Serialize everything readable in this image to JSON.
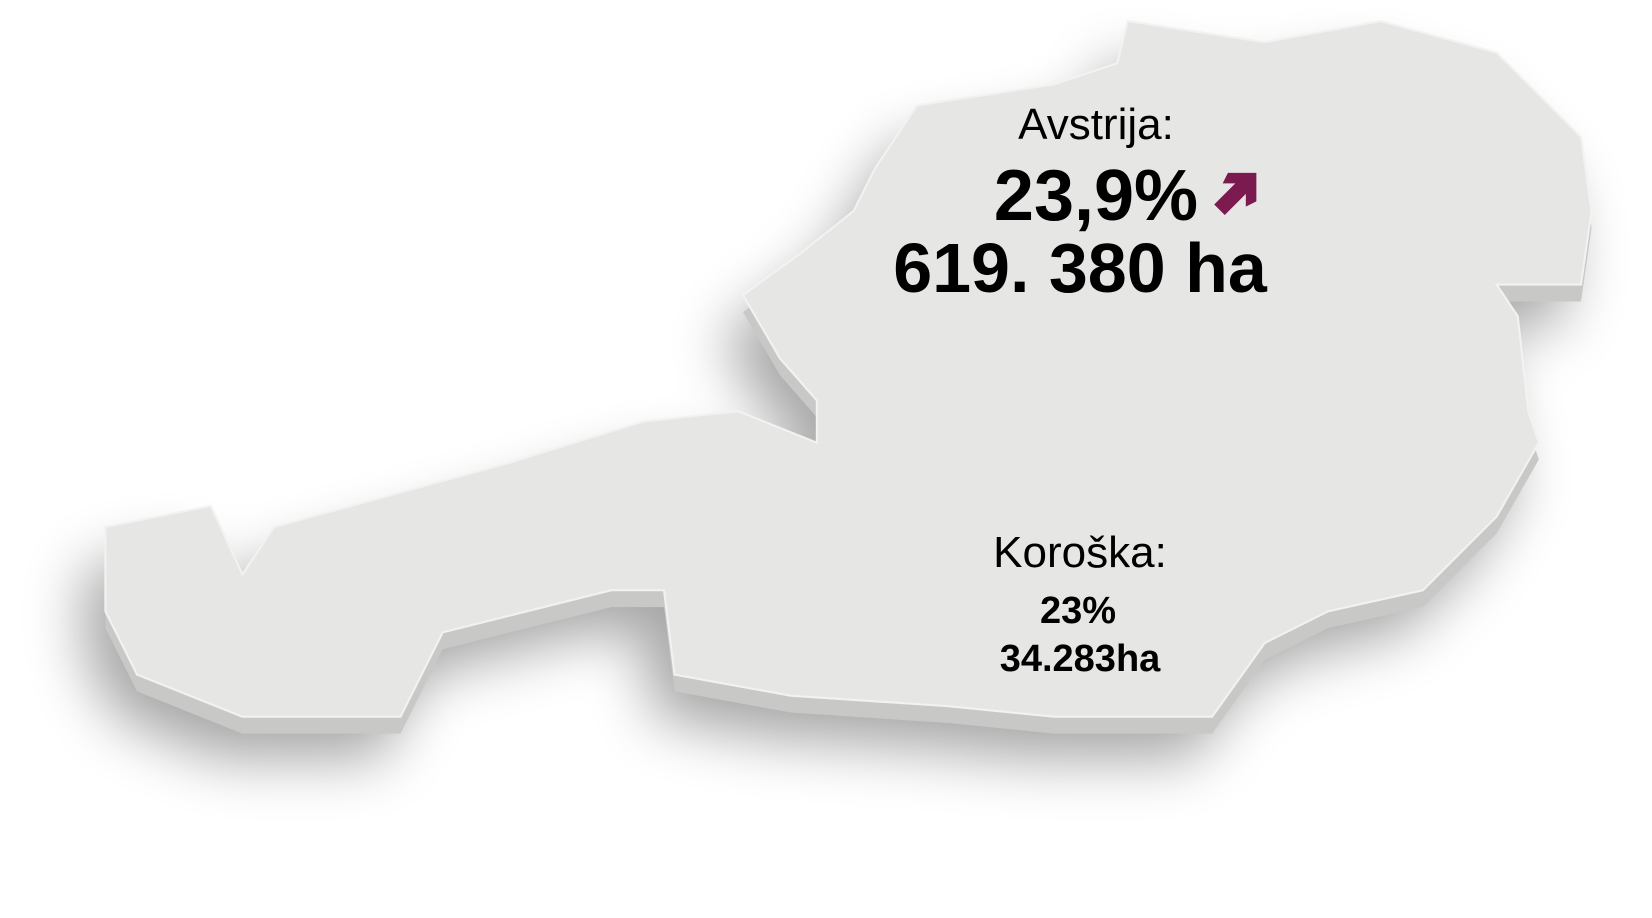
{
  "austria": {
    "label": "Avstrija:",
    "percent": "23,9%",
    "area": "619. 380 ha"
  },
  "carinthia": {
    "label": "Koroška:",
    "percent": "23%",
    "area": "34.283ha"
  }
}
